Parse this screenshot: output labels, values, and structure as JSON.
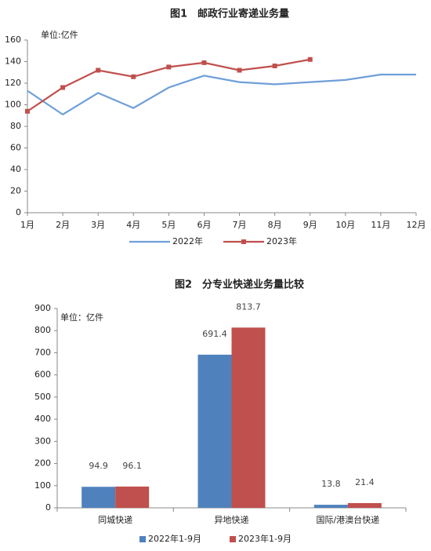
{
  "chart_data": [
    {
      "type": "line",
      "title": "图1　邮政行业寄递业务量",
      "unit_label": "单位:亿件",
      "categories": [
        "1月",
        "2月",
        "3月",
        "4月",
        "5月",
        "6月",
        "7月",
        "8月",
        "9月",
        "10月",
        "11月",
        "12月"
      ],
      "series": [
        {
          "name": "2022年",
          "color": "#6f9fd8",
          "marker": "none",
          "values": [
            113,
            91,
            111,
            97,
            116,
            127,
            121,
            119,
            121,
            123,
            128,
            128
          ]
        },
        {
          "name": "2023年",
          "color": "#c0504d",
          "marker": "square",
          "values": [
            94,
            116,
            132,
            126,
            135,
            139,
            132,
            136,
            142,
            null,
            null,
            null
          ]
        }
      ],
      "ylim": [
        0,
        160
      ],
      "yticks": [
        0,
        20,
        40,
        60,
        80,
        100,
        120,
        140,
        160
      ],
      "grid": false,
      "legend": "bottom"
    },
    {
      "type": "bar",
      "title": "图2　分专业快递业务量比较",
      "unit_label": "单位：亿件",
      "categories": [
        "同城快递",
        "异地快递",
        "国际/港澳台快递"
      ],
      "series": [
        {
          "name": "2022年1-9月",
          "color": "#4f81bd",
          "values": [
            94.9,
            691.4,
            13.8
          ]
        },
        {
          "name": "2023年1-9月",
          "color": "#c0504d",
          "values": [
            96.1,
            813.7,
            21.4
          ]
        }
      ],
      "ylim": [
        0,
        900
      ],
      "yticks": [
        0,
        100,
        200,
        300,
        400,
        500,
        600,
        700,
        800,
        900
      ],
      "grid": false,
      "legend": "bottom"
    }
  ]
}
